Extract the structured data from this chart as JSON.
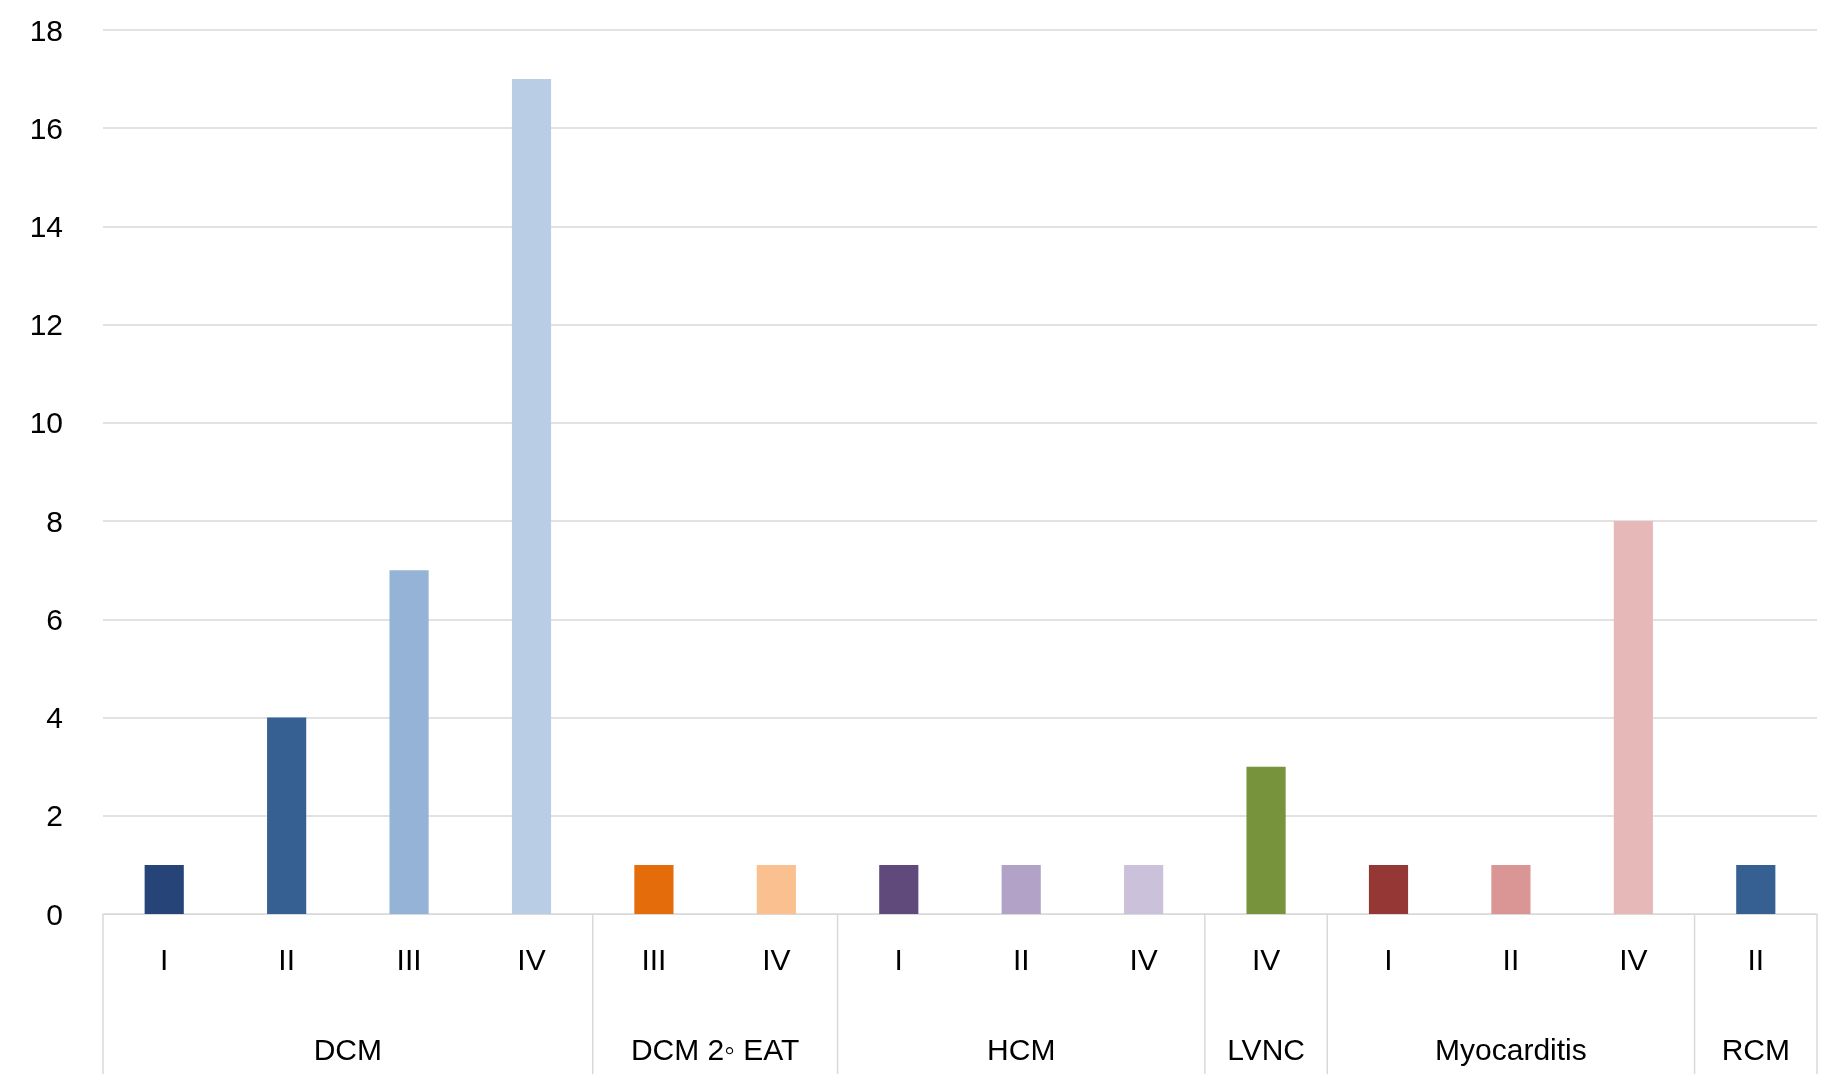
{
  "chart_data": {
    "type": "bar",
    "categories": [
      "I",
      "II",
      "III",
      "IV",
      "III",
      "IV",
      "I",
      "II",
      "IV",
      "IV",
      "I",
      "II",
      "IV",
      "II"
    ],
    "values": [
      1,
      4,
      7,
      17,
      1,
      1,
      1,
      1,
      1,
      3,
      1,
      1,
      8,
      1
    ],
    "colors": [
      "#264478",
      "#376092",
      "#95b3d7",
      "#b9cde5",
      "#e46c0a",
      "#fac090",
      "#604a7b",
      "#b3a2c7",
      "#ccc1da",
      "#77933c",
      "#953735",
      "#d99694",
      "#e6b9b8",
      "#376092"
    ],
    "annotations": [
      "DCM",
      "DCM 2◦ EAT",
      "HCM",
      "LVNC",
      "Myocarditis",
      "RCM"
    ],
    "ylim": [
      0,
      18
    ],
    "yticks": [
      0,
      2,
      4,
      6,
      8,
      10,
      12,
      14,
      16,
      18
    ],
    "grid": "y"
  }
}
